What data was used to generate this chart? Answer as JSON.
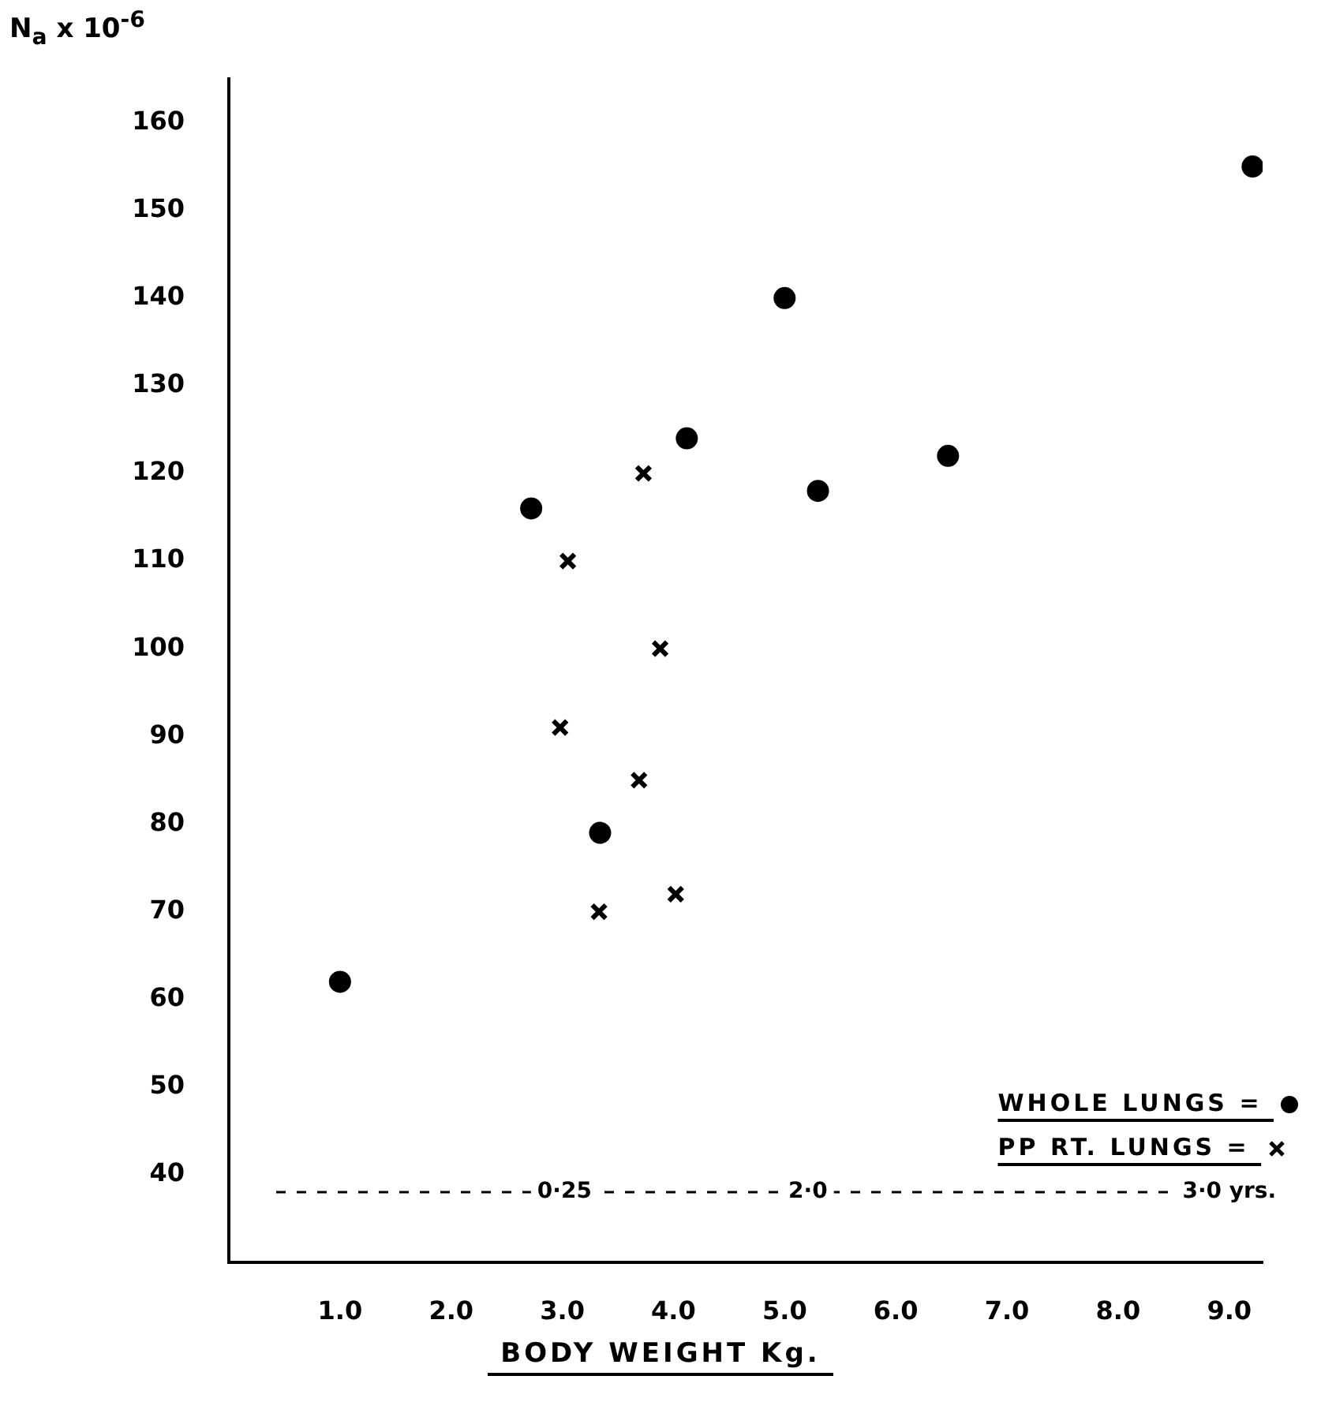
{
  "chart_data": {
    "type": "scatter",
    "xlabel": "BODY WEIGHT Kg.",
    "ylabel": "N$_{a}$ x 10$^{-6}$",
    "series": [
      {
        "name": "WHOLE LUNGS =",
        "color": "#000000",
        "marker": "circle",
        "x": [
          1.0,
          2.72,
          3.34,
          4.12,
          5.0,
          5.3,
          6.47,
          9.21
        ],
        "values": [
          62,
          116,
          79,
          124,
          140,
          118,
          122,
          155
        ]
      },
      {
        "name": "PP RT. LUNGS =",
        "color": "#000000",
        "marker": "cross",
        "x": [
          3.73,
          3.05,
          3.88,
          2.98,
          3.69,
          3.33,
          4.02
        ],
        "values": [
          120,
          110,
          100,
          91,
          85,
          70,
          72
        ]
      }
    ],
    "xlim": [
      0,
      9.3
    ],
    "ylim": [
      30,
      165
    ],
    "xticks": [
      {
        "value": 1,
        "label": "1.0"
      },
      {
        "value": 2,
        "label": "2.0"
      },
      {
        "value": 3,
        "label": "3.0"
      },
      {
        "value": 4,
        "label": "4.0"
      },
      {
        "value": 5,
        "label": "5.0"
      },
      {
        "value": 6,
        "label": "6.0"
      },
      {
        "value": 7,
        "label": "7.0"
      },
      {
        "value": 8,
        "label": "8.0"
      },
      {
        "value": 9,
        "label": "9.0"
      }
    ],
    "yticks": [
      40,
      50,
      60,
      70,
      80,
      90,
      100,
      110,
      120,
      130,
      140,
      150,
      160
    ],
    "ref_lines": [
      {
        "axis": "y",
        "value": 38,
        "label": null,
        "color": "#000000",
        "line_style": "dashed"
      }
    ],
    "annotations": [
      {
        "text": "0·25",
        "x": 3.02,
        "y": 38
      },
      {
        "text": "2·0",
        "x": 5.21,
        "y": 38
      },
      {
        "text": "3·0 yrs.",
        "x": 9.0,
        "y": 38
      }
    ],
    "grid": false,
    "legend": "bottom right"
  }
}
